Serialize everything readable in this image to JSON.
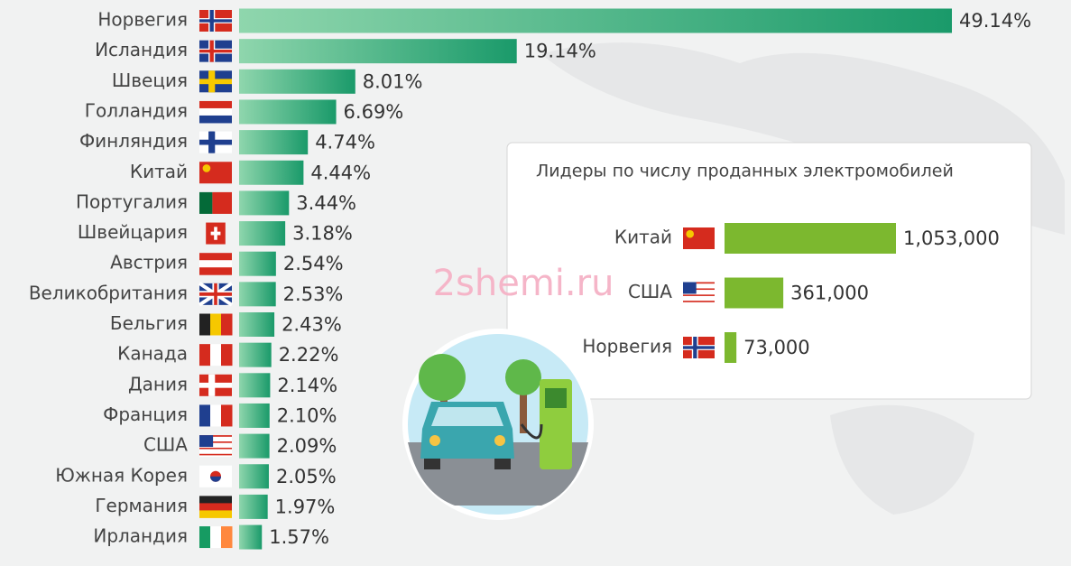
{
  "chart_data": [
    {
      "type": "hbar",
      "categories": [
        "Норвегия",
        "Исландия",
        "Швеция",
        "Голландия",
        "Финляндия",
        "Китай",
        "Португалия",
        "Швейцария",
        "Австрия",
        "Великобритания",
        "Бельгия",
        "Канада",
        "Дания",
        "Франция",
        "США",
        "Южная Корея",
        "Германия",
        "Ирландия"
      ],
      "values": [
        49.14,
        19.14,
        8.01,
        6.69,
        4.74,
        4.44,
        3.44,
        3.18,
        2.54,
        2.53,
        2.43,
        2.22,
        2.14,
        2.1,
        2.09,
        2.05,
        1.97,
        1.57
      ],
      "value_labels": [
        "49.14%",
        "19.14%",
        "8.01%",
        "6.69%",
        "4.74%",
        "4.44%",
        "3.44%",
        "3.18%",
        "2.54%",
        "2.53%",
        "2.43%",
        "2.22%",
        "2.14%",
        "2.10%",
        "2.09%",
        "2.05%",
        "1.97%",
        "1.57%"
      ],
      "color": "#1a9a6a"
    },
    {
      "type": "hbar",
      "title": "Лидеры по числу проданных электромобилей",
      "categories": [
        "Китай",
        "США",
        "Норвегия"
      ],
      "values": [
        1053000,
        361000,
        73000
      ],
      "value_labels": [
        "1,053,000",
        "361,000",
        "73,000"
      ],
      "color": "#7cb82f"
    }
  ],
  "watermark": "2shemi.ru"
}
